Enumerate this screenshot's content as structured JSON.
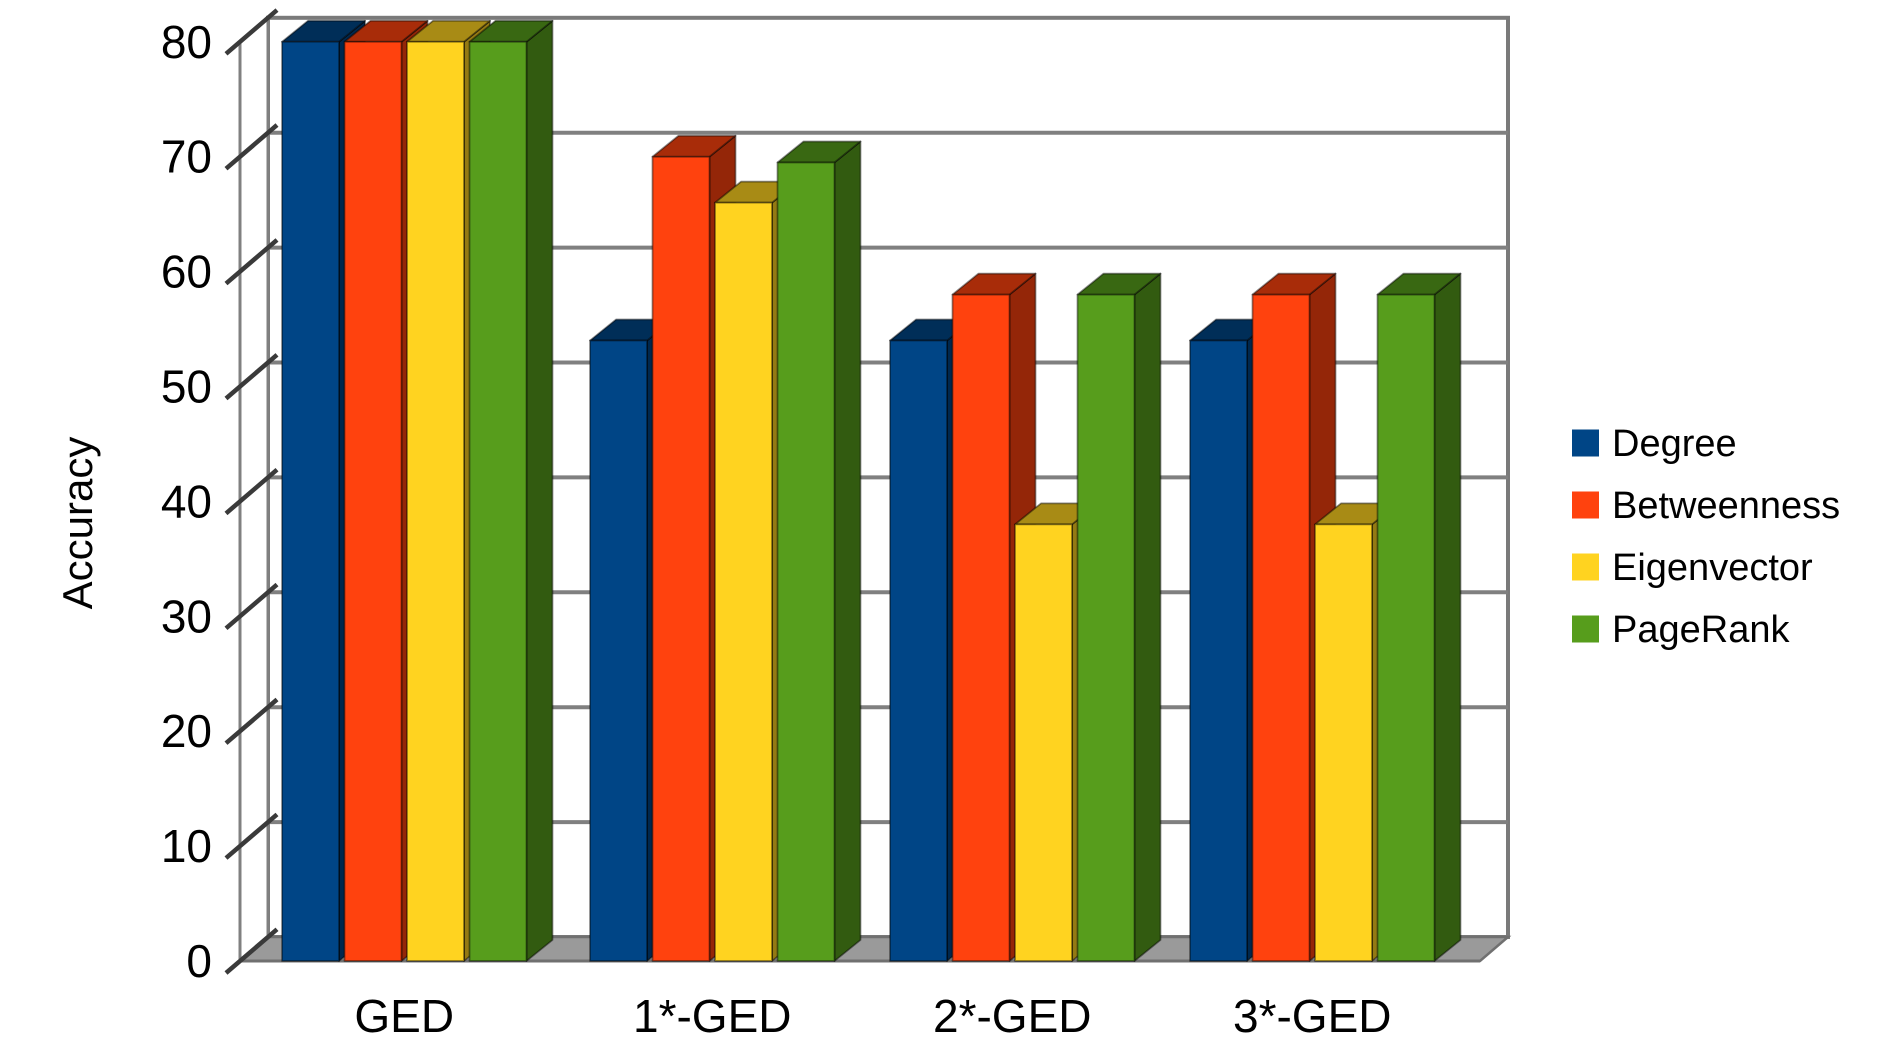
{
  "chart_data": {
    "type": "bar",
    "projection": "3d",
    "title": "",
    "xlabel": "",
    "ylabel": "Accuracy",
    "categories": [
      "GED",
      "1*-GED",
      "2*-GED",
      "3*-GED"
    ],
    "series": [
      {
        "name": "Degree",
        "color": "#004586",
        "values": [
          80,
          54,
          54,
          54
        ]
      },
      {
        "name": "Betweenness",
        "color": "#ff420e",
        "values": [
          80,
          70,
          58,
          58
        ]
      },
      {
        "name": "Eigenvector",
        "color": "#ffd320",
        "values": [
          80,
          66,
          38,
          38
        ]
      },
      {
        "name": "PageRank",
        "color": "#579d1c",
        "values": [
          80,
          69.5,
          58,
          58
        ]
      }
    ],
    "ylim": [
      0,
      80
    ],
    "yticks": [
      0,
      10,
      20,
      30,
      40,
      50,
      60,
      70,
      80
    ],
    "grid": "horizontal-major",
    "legend_position": "right",
    "colors": {
      "background": "#ffffff",
      "wall": "#ffffff",
      "wall_border": "#7a7a7a",
      "gridline": "#808080",
      "floor": "#9a9a9a",
      "floor_edge": "#707070",
      "tick": "#3a3a3a",
      "text": "#000000"
    }
  }
}
